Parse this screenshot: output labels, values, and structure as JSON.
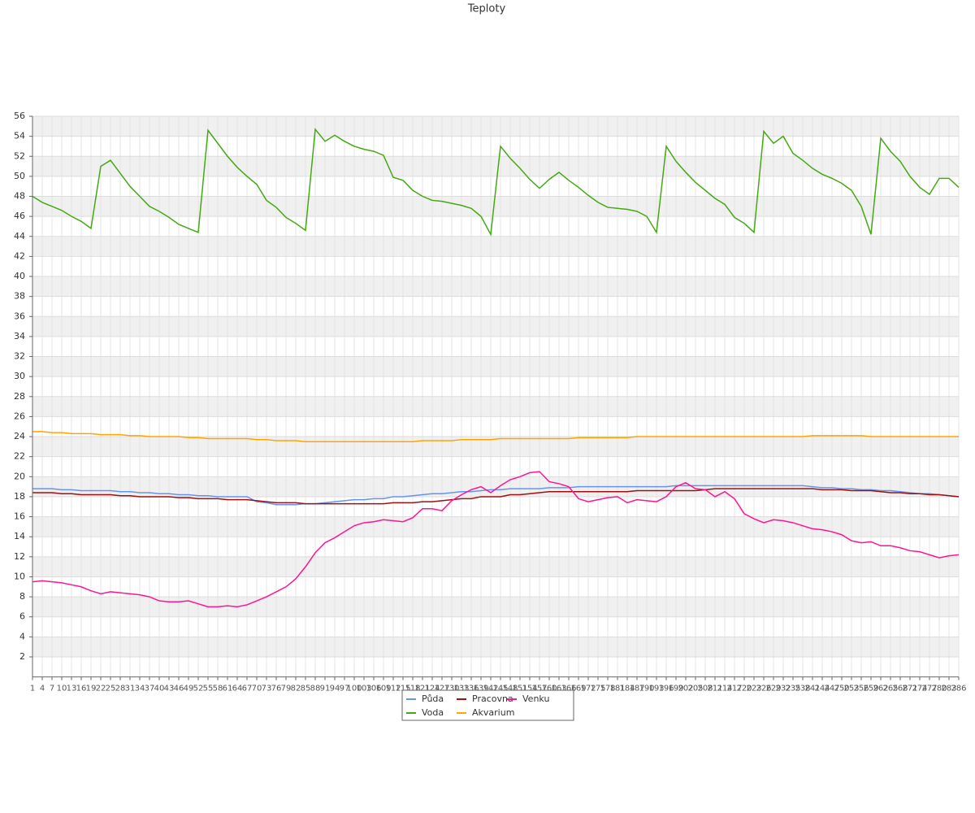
{
  "chart_data": {
    "type": "line",
    "title": "Teploty",
    "categories": [
      1,
      4,
      7,
      10,
      13,
      16,
      19,
      22,
      25,
      28,
      31,
      34,
      37,
      40,
      43,
      46,
      49,
      52,
      55,
      58,
      61,
      64,
      67,
      70,
      73,
      76,
      79,
      82,
      85,
      88,
      91,
      94,
      97,
      100,
      103,
      106,
      109,
      112,
      115,
      118,
      121,
      124,
      127,
      130,
      133,
      136,
      139,
      142,
      145,
      148,
      151,
      154,
      157,
      160,
      163,
      166,
      169,
      172,
      175,
      178,
      181,
      184,
      187,
      190,
      193,
      196,
      199,
      202,
      205,
      208,
      211,
      214,
      217,
      220,
      223,
      226,
      229,
      232,
      235,
      238,
      241,
      244,
      247,
      250,
      253,
      256,
      259,
      262,
      265,
      268,
      271,
      274,
      277,
      280,
      283,
      286
    ],
    "series": [
      {
        "name": "Půda",
        "color": "#6495ed",
        "values": [
          18.8,
          18.8,
          18.8,
          18.7,
          18.7,
          18.6,
          18.6,
          18.6,
          18.6,
          18.5,
          18.5,
          18.4,
          18.4,
          18.3,
          18.3,
          18.2,
          18.2,
          18.1,
          18.1,
          18.0,
          18.0,
          18.0,
          18.0,
          17.5,
          17.4,
          17.2,
          17.2,
          17.2,
          17.3,
          17.3,
          17.4,
          17.5,
          17.6,
          17.7,
          17.7,
          17.8,
          17.8,
          18.0,
          18.0,
          18.1,
          18.2,
          18.3,
          18.3,
          18.4,
          18.5,
          18.5,
          18.6,
          18.7,
          18.7,
          18.8,
          18.8,
          18.8,
          18.8,
          18.9,
          18.9,
          18.9,
          19.0,
          19.0,
          19.0,
          19.0,
          19.0,
          19.0,
          19.0,
          19.0,
          19.0,
          19.0,
          19.1,
          19.1,
          19.1,
          19.1,
          19.1,
          19.1,
          19.1,
          19.1,
          19.1,
          19.1,
          19.1,
          19.1,
          19.1,
          19.1,
          19.0,
          18.9,
          18.9,
          18.8,
          18.8,
          18.7,
          18.7,
          18.6,
          18.6,
          18.5,
          18.4,
          18.3,
          18.3,
          18.2,
          18.1,
          18.0
        ]
      },
      {
        "name": "Voda",
        "color": "#44aa11",
        "values": [
          48.0,
          47.4,
          47.0,
          46.6,
          46.0,
          45.5,
          44.8,
          51.0,
          51.6,
          50.3,
          49.0,
          48.0,
          47.0,
          46.5,
          45.9,
          45.2,
          44.8,
          44.4,
          54.6,
          53.3,
          52.0,
          50.9,
          50.0,
          49.2,
          47.6,
          46.9,
          45.9,
          45.3,
          44.6,
          54.7,
          53.5,
          54.1,
          53.5,
          53.0,
          52.7,
          52.5,
          52.1,
          49.9,
          49.6,
          48.6,
          48.0,
          47.6,
          47.5,
          47.3,
          47.1,
          46.8,
          46.0,
          44.2,
          53.0,
          51.8,
          50.8,
          49.7,
          48.8,
          49.7,
          50.4,
          49.6,
          48.9,
          48.1,
          47.4,
          46.9,
          46.8,
          46.7,
          46.5,
          46.0,
          44.4,
          53.0,
          51.5,
          50.4,
          49.4,
          48.6,
          47.8,
          47.2,
          45.9,
          45.3,
          44.4,
          54.5,
          53.3,
          54.0,
          52.3,
          51.6,
          50.8,
          50.2,
          49.8,
          49.3,
          48.6,
          47.0,
          44.2,
          53.8,
          52.5,
          51.5,
          50.0,
          48.9,
          48.2,
          49.8,
          49.8,
          48.9
        ]
      },
      {
        "name": "Pracovna",
        "color": "#a01010",
        "values": [
          18.4,
          18.4,
          18.4,
          18.3,
          18.3,
          18.2,
          18.2,
          18.2,
          18.2,
          18.1,
          18.1,
          18.0,
          18.0,
          18.0,
          18.0,
          17.9,
          17.9,
          17.8,
          17.8,
          17.8,
          17.7,
          17.7,
          17.7,
          17.6,
          17.5,
          17.4,
          17.4,
          17.4,
          17.3,
          17.3,
          17.3,
          17.3,
          17.3,
          17.3,
          17.3,
          17.3,
          17.3,
          17.4,
          17.4,
          17.4,
          17.5,
          17.5,
          17.6,
          17.7,
          17.8,
          17.8,
          18.0,
          18.0,
          18.0,
          18.2,
          18.2,
          18.3,
          18.4,
          18.5,
          18.5,
          18.5,
          18.5,
          18.5,
          18.5,
          18.5,
          18.5,
          18.5,
          18.6,
          18.6,
          18.6,
          18.6,
          18.6,
          18.6,
          18.6,
          18.7,
          18.8,
          18.8,
          18.8,
          18.8,
          18.8,
          18.8,
          18.8,
          18.8,
          18.8,
          18.8,
          18.8,
          18.7,
          18.7,
          18.7,
          18.6,
          18.6,
          18.6,
          18.5,
          18.4,
          18.4,
          18.3,
          18.3,
          18.2,
          18.2,
          18.1,
          18.0
        ]
      },
      {
        "name": "Akvarium",
        "color": "#ffa500",
        "values": [
          24.5,
          24.5,
          24.4,
          24.4,
          24.3,
          24.3,
          24.3,
          24.2,
          24.2,
          24.2,
          24.1,
          24.1,
          24.0,
          24.0,
          24.0,
          24.0,
          23.9,
          23.9,
          23.8,
          23.8,
          23.8,
          23.8,
          23.8,
          23.7,
          23.7,
          23.6,
          23.6,
          23.6,
          23.5,
          23.5,
          23.5,
          23.5,
          23.5,
          23.5,
          23.5,
          23.5,
          23.5,
          23.5,
          23.5,
          23.5,
          23.6,
          23.6,
          23.6,
          23.6,
          23.7,
          23.7,
          23.7,
          23.7,
          23.8,
          23.8,
          23.8,
          23.8,
          23.8,
          23.8,
          23.8,
          23.8,
          23.9,
          23.9,
          23.9,
          23.9,
          23.9,
          23.9,
          24.0,
          24.0,
          24.0,
          24.0,
          24.0,
          24.0,
          24.0,
          24.0,
          24.0,
          24.0,
          24.0,
          24.0,
          24.0,
          24.0,
          24.0,
          24.0,
          24.0,
          24.0,
          24.1,
          24.1,
          24.1,
          24.1,
          24.1,
          24.1,
          24.0,
          24.0,
          24.0,
          24.0,
          24.0,
          24.0,
          24.0,
          24.0,
          24.0,
          24.0
        ]
      },
      {
        "name": "Venku",
        "color": "#ff1493",
        "values": [
          9.5,
          9.6,
          9.5,
          9.4,
          9.2,
          9.0,
          8.6,
          8.3,
          8.5,
          8.4,
          8.3,
          8.2,
          8.0,
          7.6,
          7.5,
          7.5,
          7.6,
          7.3,
          7.0,
          7.0,
          7.1,
          7.0,
          7.2,
          7.6,
          8.0,
          8.5,
          9.0,
          9.8,
          11.0,
          12.4,
          13.4,
          13.9,
          14.5,
          15.1,
          15.4,
          15.5,
          15.7,
          15.6,
          15.5,
          15.9,
          16.8,
          16.8,
          16.6,
          17.6,
          18.2,
          18.7,
          19.0,
          18.4,
          19.1,
          19.7,
          20.0,
          20.4,
          20.5,
          19.5,
          19.3,
          19.0,
          17.8,
          17.5,
          17.7,
          17.9,
          18.0,
          17.4,
          17.7,
          17.6,
          17.5,
          18.0,
          19.0,
          19.4,
          18.8,
          18.7,
          18.0,
          18.5,
          17.8,
          16.3,
          15.8,
          15.4,
          15.7,
          15.6,
          15.4,
          15.1,
          14.8,
          14.7,
          14.5,
          14.2,
          13.6,
          13.4,
          13.5,
          13.1,
          13.1,
          12.9,
          12.6,
          12.5,
          12.2,
          11.9,
          12.1,
          12.2
        ]
      }
    ],
    "ylim": [
      0,
      56
    ],
    "yticks": [
      2,
      4,
      6,
      8,
      10,
      12,
      14,
      16,
      18,
      20,
      22,
      24,
      26,
      28,
      30,
      32,
      34,
      36,
      38,
      40,
      42,
      44,
      46,
      48,
      50,
      52,
      54,
      56
    ],
    "grid": true
  }
}
